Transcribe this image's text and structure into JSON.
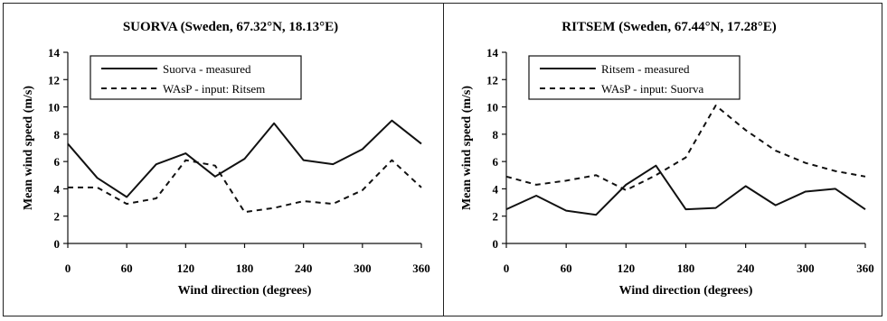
{
  "chart_data": [
    {
      "type": "line",
      "title": "SUORVA (Sweden, 67.32°N, 18.13°E)",
      "xlabel": "Wind direction (degrees)",
      "ylabel": "Mean wind speed (m/s)",
      "xlim": [
        0,
        360
      ],
      "ylim": [
        0,
        14
      ],
      "xticks": [
        0,
        60,
        120,
        180,
        240,
        300,
        360
      ],
      "yticks": [
        0,
        2,
        4,
        6,
        8,
        10,
        12,
        14
      ],
      "grid": false,
      "legend_position": "top-left",
      "x": [
        0,
        30,
        60,
        90,
        120,
        150,
        180,
        210,
        240,
        270,
        300,
        330,
        360
      ],
      "series": [
        {
          "name": "Suorva - measured",
          "style": "solid",
          "values": [
            7.3,
            4.8,
            3.4,
            5.8,
            6.6,
            4.9,
            6.2,
            8.8,
            6.1,
            5.8,
            6.9,
            9.0,
            7.3
          ]
        },
        {
          "name": "WAsP - input: Ritsem",
          "style": "dashed",
          "values": [
            4.1,
            4.1,
            2.9,
            3.3,
            6.1,
            5.7,
            2.3,
            2.6,
            3.1,
            2.9,
            3.9,
            6.1,
            4.1
          ]
        }
      ]
    },
    {
      "type": "line",
      "title": "RITSEM (Sweden, 67.44°N, 17.28°E)",
      "xlabel": "Wind direction (degrees)",
      "ylabel": "Mean wind speed (m/s)",
      "xlim": [
        0,
        360
      ],
      "ylim": [
        0,
        14
      ],
      "xticks": [
        0,
        60,
        120,
        180,
        240,
        300,
        360
      ],
      "yticks": [
        0,
        2,
        4,
        6,
        8,
        10,
        12,
        14
      ],
      "grid": false,
      "legend_position": "top-left",
      "x": [
        0,
        30,
        60,
        90,
        120,
        150,
        180,
        210,
        240,
        270,
        300,
        330,
        360
      ],
      "series": [
        {
          "name": "Ritsem - measured",
          "style": "solid",
          "values": [
            2.5,
            3.5,
            2.4,
            2.1,
            4.3,
            5.7,
            2.5,
            2.6,
            4.2,
            2.8,
            3.8,
            4.0,
            2.5
          ]
        },
        {
          "name": "WAsP - input: Suorva",
          "style": "dashed",
          "values": [
            4.9,
            4.3,
            4.6,
            5.0,
            3.9,
            5.0,
            6.3,
            10.1,
            8.3,
            6.8,
            5.9,
            5.3,
            4.9
          ]
        }
      ]
    }
  ],
  "colors": {
    "line": "#111111",
    "background": "#ffffff"
  }
}
